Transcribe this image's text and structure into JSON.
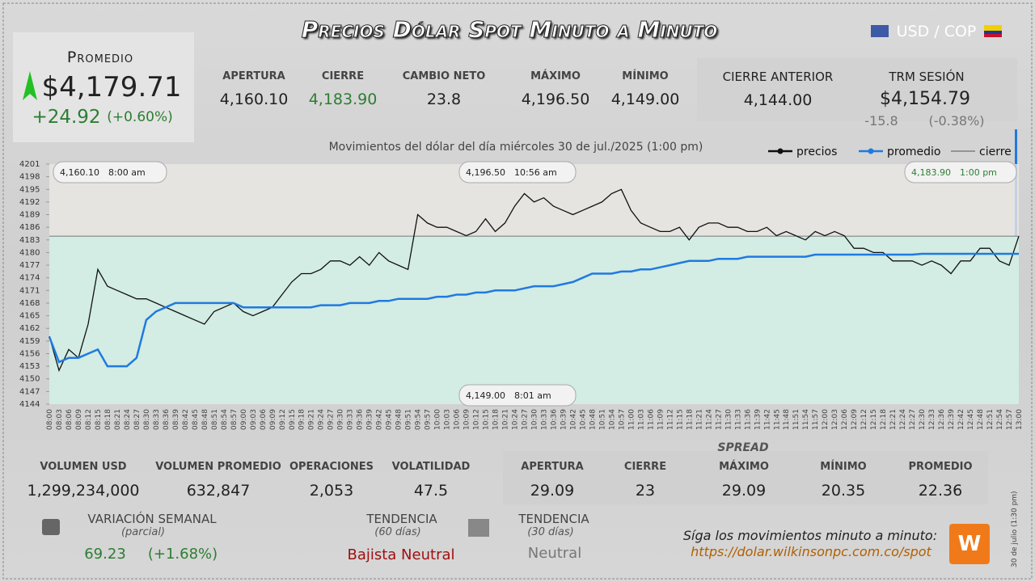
{
  "header": {
    "title": "Precios Dólar Spot Minuto a Minuto",
    "pair": "USD / COP"
  },
  "promedio": {
    "label": "Promedio",
    "price": "$4,179.71",
    "change": "+24.92",
    "change_pct": "(+0.60%)"
  },
  "summary": [
    {
      "label": "APERTURA",
      "value": "4,160.10"
    },
    {
      "label": "CIERRE",
      "value": "4,183.90"
    },
    {
      "label": "CAMBIO NETO",
      "value": "23.8"
    },
    {
      "label": "MÁXIMO",
      "value": "4,196.50"
    },
    {
      "label": "MÍNIMO",
      "value": "4,149.00"
    }
  ],
  "previous": {
    "label": "CIERRE ANTERIOR",
    "value": "4,144.00"
  },
  "trm": {
    "label": "TRM SESIÓN",
    "value": "$4,154.79",
    "change": "-15.8",
    "change_pct": "(-0.38%)"
  },
  "stats": [
    {
      "label": "VOLUMEN USD",
      "value": "1,299,234,000"
    },
    {
      "label": "VOLUMEN PROMEDIO",
      "value": "632,847"
    },
    {
      "label": "OPERACIONES",
      "value": "2,053"
    },
    {
      "label": "VOLATILIDAD",
      "value": "47.5"
    }
  ],
  "spread": {
    "title": "SPREAD",
    "items": [
      {
        "label": "APERTURA",
        "value": "29.09"
      },
      {
        "label": "CIERRE",
        "value": "23"
      },
      {
        "label": "MÁXIMO",
        "value": "29.09"
      },
      {
        "label": "MÍNIMO",
        "value": "20.35"
      },
      {
        "label": "PROMEDIO",
        "value": "22.36"
      }
    ]
  },
  "weekly": {
    "label": "VARIACIÓN SEMANAL",
    "sub": "(parcial)",
    "value": "69.23",
    "pct": "(+1.68%)"
  },
  "trend60": {
    "label": "TENDENCIA",
    "sub": "(60 días)",
    "value": "Bajista Neutral"
  },
  "trend30": {
    "label": "TENDENCIA",
    "sub": "(30 días)",
    "value": "Neutral"
  },
  "follow": {
    "text": "Síga los movimientos minuto a minuto:",
    "url": "https://dolar.wilkinsonpc.com.co/spot"
  },
  "side_note": "30 de julio (1:30 pm)",
  "chart_data": {
    "type": "line",
    "title": "Movimientos del dólar del día miércoles 30 de jul./2025 (1:00 pm)",
    "categories": [
      "08:00",
      "08:03",
      "08:06",
      "08:09",
      "08:12",
      "08:15",
      "08:18",
      "08:21",
      "08:24",
      "08:27",
      "08:30",
      "08:33",
      "08:36",
      "08:39",
      "08:42",
      "08:45",
      "08:48",
      "08:51",
      "08:54",
      "08:57",
      "09:00",
      "09:03",
      "09:06",
      "09:09",
      "09:12",
      "09:15",
      "09:18",
      "09:21",
      "09:24",
      "09:27",
      "09:30",
      "09:33",
      "09:36",
      "09:39",
      "09:42",
      "09:45",
      "09:48",
      "09:51",
      "09:54",
      "09:57",
      "10:00",
      "10:03",
      "10:06",
      "10:09",
      "10:12",
      "10:15",
      "10:18",
      "10:21",
      "10:24",
      "10:27",
      "10:30",
      "10:33",
      "10:36",
      "10:39",
      "10:42",
      "10:45",
      "10:48",
      "10:51",
      "10:54",
      "10:57",
      "11:00",
      "11:03",
      "11:06",
      "11:09",
      "11:12",
      "11:15",
      "11:18",
      "11:21",
      "11:24",
      "11:27",
      "11:30",
      "11:33",
      "11:36",
      "11:39",
      "11:42",
      "11:45",
      "11:48",
      "11:51",
      "11:54",
      "11:57",
      "12:00",
      "12:03",
      "12:06",
      "12:09",
      "12:12",
      "12:15",
      "12:18",
      "12:21",
      "12:24",
      "12:27",
      "12:30",
      "12:33",
      "12:36",
      "12:39",
      "12:42",
      "12:45",
      "12:48",
      "12:51",
      "12:54",
      "12:57",
      "13:00"
    ],
    "series": [
      {
        "name": "precios",
        "color": "#111111",
        "values": [
          4160.1,
          4152,
          4157,
          4155,
          4163,
          4176,
          4172,
          4171,
          4170,
          4169,
          4169,
          4168,
          4167,
          4166,
          4165,
          4164,
          4163,
          4166,
          4167,
          4168,
          4166,
          4165,
          4166,
          4167,
          4170,
          4173,
          4175,
          4175,
          4176,
          4178,
          4178,
          4177,
          4179,
          4177,
          4180,
          4178,
          4177,
          4176,
          4189,
          4187,
          4186,
          4186,
          4185,
          4184,
          4185,
          4188,
          4185,
          4187,
          4191,
          4194,
          4192,
          4193,
          4191,
          4190,
          4189,
          4190,
          4191,
          4192,
          4194,
          4195,
          4190,
          4187,
          4186,
          4185,
          4185,
          4186,
          4183,
          4186,
          4187,
          4187,
          4186,
          4186,
          4185,
          4185,
          4186,
          4184,
          4185,
          4184,
          4183,
          4185,
          4184,
          4185,
          4184,
          4181,
          4181,
          4180,
          4180,
          4178,
          4178,
          4178,
          4177,
          4178,
          4177,
          4175,
          4178,
          4178,
          4181,
          4181,
          4178,
          4177,
          4183.9
        ]
      },
      {
        "name": "promedio",
        "color": "#1f7ae0",
        "values": [
          4160,
          4154,
          4155,
          4155,
          4156,
          4157,
          4153,
          4153,
          4153,
          4155,
          4164,
          4166,
          4167,
          4168,
          4168,
          4168,
          4168,
          4168,
          4168,
          4168,
          4167,
          4167,
          4167,
          4167,
          4167,
          4167,
          4167,
          4167,
          4167.5,
          4167.5,
          4167.5,
          4168,
          4168,
          4168,
          4168.5,
          4168.5,
          4169,
          4169,
          4169,
          4169,
          4169.5,
          4169.5,
          4170,
          4170,
          4170.5,
          4170.5,
          4171,
          4171,
          4171,
          4171.5,
          4172,
          4172,
          4172,
          4172.5,
          4173,
          4174,
          4175,
          4175,
          4175,
          4175.5,
          4175.5,
          4176,
          4176,
          4176.5,
          4177,
          4177.5,
          4178,
          4178,
          4178,
          4178.5,
          4178.5,
          4178.5,
          4179,
          4179,
          4179,
          4179,
          4179,
          4179,
          4179,
          4179.5,
          4179.5,
          4179.5,
          4179.5,
          4179.5,
          4179.5,
          4179.5,
          4179.5,
          4179.5,
          4179.5,
          4179.5,
          4179.7,
          4179.7,
          4179.7,
          4179.7,
          4179.7,
          4179.7,
          4179.7,
          4179.7,
          4179.7,
          4179.7,
          4179.7
        ]
      }
    ],
    "reference_line": {
      "name": "cierre",
      "value": 4183.9,
      "color": "#555555"
    },
    "annotations": [
      {
        "price": "4,160.10",
        "time": "8:00 am"
      },
      {
        "price": "4,196.50",
        "time": "10:56 am"
      },
      {
        "price": "4,149.00",
        "time": "8:01 am"
      },
      {
        "price": "4,183.90",
        "time": "1:00 pm"
      }
    ],
    "ylim": [
      4144,
      4201
    ],
    "yticks": [
      4144,
      4147,
      4150,
      4153,
      4156,
      4159,
      4162,
      4165,
      4168,
      4171,
      4174,
      4177,
      4180,
      4183,
      4186,
      4189,
      4192,
      4195,
      4198,
      4201
    ],
    "grid": false
  }
}
